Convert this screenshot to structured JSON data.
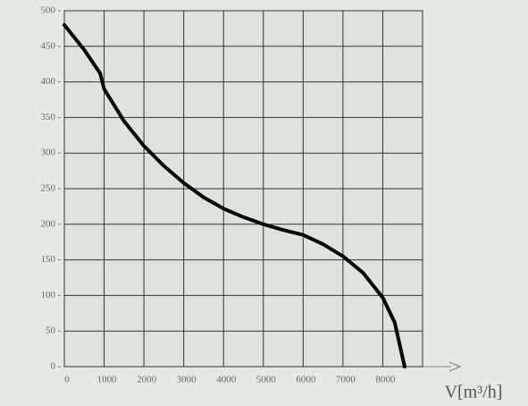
{
  "chart_data": {
    "type": "line",
    "xlabel": "V[m³/h]",
    "x": [
      0,
      500,
      900,
      1000,
      1500,
      2000,
      2500,
      3000,
      3500,
      4000,
      4500,
      5000,
      5500,
      6000,
      6500,
      7000,
      7500,
      8000,
      8300,
      8550
    ],
    "y": [
      480,
      445,
      412,
      390,
      345,
      310,
      282,
      258,
      238,
      222,
      210,
      200,
      192,
      185,
      172,
      155,
      132,
      97,
      62,
      0
    ],
    "color": "#000000",
    "xlim": [
      0,
      9000
    ],
    "xticks": [
      0,
      1000,
      2000,
      3000,
      4000,
      5000,
      6000,
      7000,
      8000
    ],
    "ylim": [
      0,
      500
    ],
    "yticks": [
      0,
      50,
      100,
      150,
      200,
      250,
      300,
      350,
      400,
      450,
      500
    ],
    "grid": true
  }
}
